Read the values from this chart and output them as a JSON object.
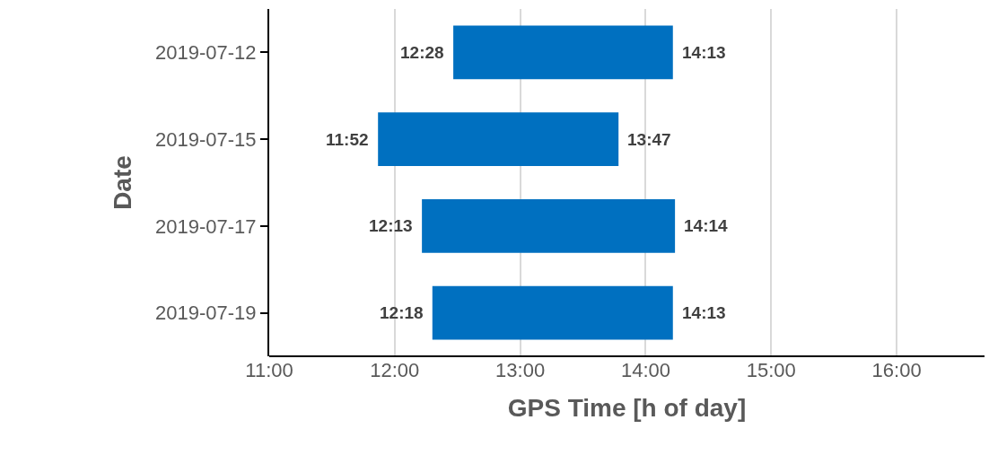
{
  "chart_data": {
    "type": "bar",
    "orientation": "horizontal",
    "xlabel": "GPS Time [h of day]",
    "ylabel": "Date",
    "categories": [
      "2019-07-12",
      "2019-07-15",
      "2019-07-17",
      "2019-07-19"
    ],
    "base": [
      12.4667,
      11.8667,
      12.2167,
      12.3
    ],
    "values": [
      1.75,
      1.9167,
      2.0167,
      1.9167
    ],
    "color": "#0070c0",
    "xlim": [
      11,
      16.7
    ],
    "xticks": [
      {
        "value": 11,
        "label": "11:00"
      },
      {
        "value": 12,
        "label": "12:00"
      },
      {
        "value": 13,
        "label": "13:00"
      },
      {
        "value": 14,
        "label": "14:00"
      },
      {
        "value": 15,
        "label": "15:00"
      },
      {
        "value": 16,
        "label": "16:00"
      }
    ],
    "grid": "x",
    "annotations": [
      {
        "text": "12:28",
        "x": 12.4667,
        "y": "2019-07-12"
      },
      {
        "text": "14:13",
        "x": 14.2167,
        "y": "2019-07-12"
      },
      {
        "text": "11:52",
        "x": 11.8667,
        "y": "2019-07-15"
      },
      {
        "text": "13:47",
        "x": 13.7833,
        "y": "2019-07-15"
      },
      {
        "text": "12:13",
        "x": 12.2167,
        "y": "2019-07-17"
      },
      {
        "text": "14:14",
        "x": 14.2333,
        "y": "2019-07-17"
      },
      {
        "text": "12:18",
        "x": 12.3,
        "y": "2019-07-19"
      },
      {
        "text": "14:13",
        "x": 14.2167,
        "y": "2019-07-19"
      }
    ]
  }
}
